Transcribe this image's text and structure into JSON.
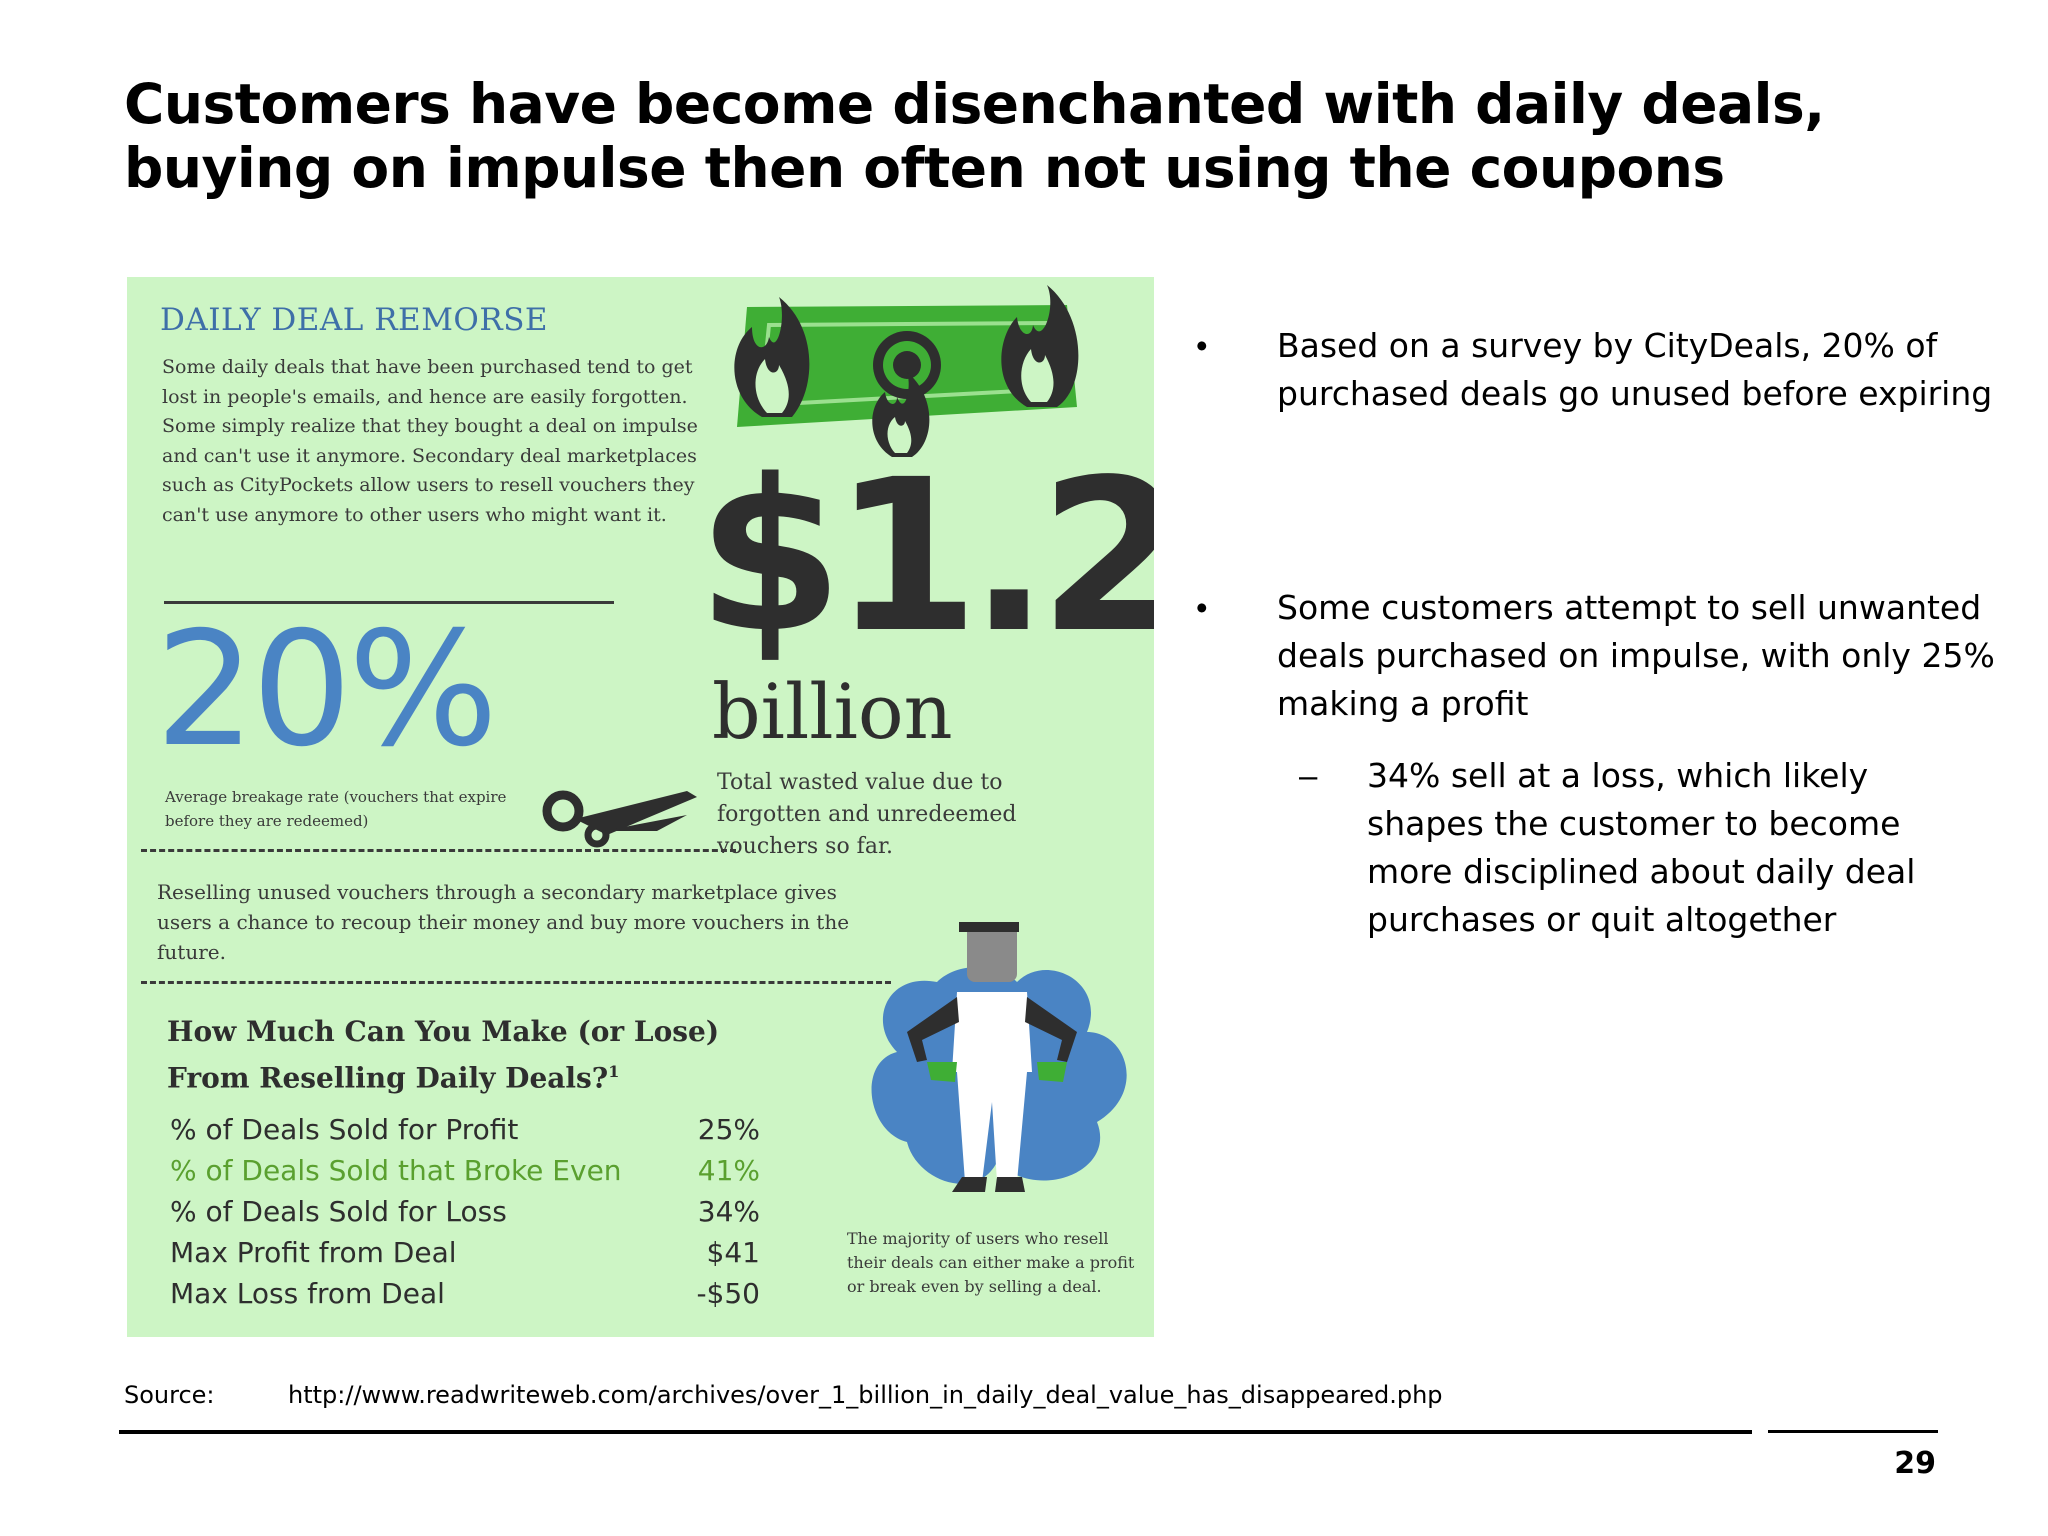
{
  "slide": {
    "title": "Customers have become disenchanted with daily deals, buying on impulse then often not using the coupons",
    "page_number": "29"
  },
  "infographic": {
    "heading": "DAILY DEAL REMORSE",
    "paragraph": "Some daily deals that have been purchased tend to get lost in people's emails, and hence are easily forgotten. Some simply realize that they bought a deal on impulse and can't use it anymore. Secondary deal marketplaces such as CityPockets allow users to resell vouchers they can't use anymore to other users who might want it.",
    "breakage_stat": "20%",
    "breakage_caption": "Average breakage rate (vouchers that expire before they are redeemed)",
    "wasted_amount": "$1.2",
    "wasted_unit": "billion",
    "wasted_caption": "Total wasted value due to forgotten and unredeemed vouchers so far.",
    "resell_text": "Reselling unused vouchers through a secondary marketplace gives users a chance to recoup their money and buy more vouchers in the future.",
    "question_line1": "How Much Can You Make (or Lose)",
    "question_line2": "From Reselling Daily Deals?",
    "question_footnote": "1",
    "table": [
      {
        "label": "% of Deals Sold for Profit",
        "value": "25%"
      },
      {
        "label": "% of Deals Sold that Broke Even",
        "value": "41%"
      },
      {
        "label": "% of Deals Sold for Loss",
        "value": "34%"
      },
      {
        "label": "Max Profit from Deal",
        "value": "$41"
      },
      {
        "label": "Max Loss from Deal",
        "value": "-$50"
      }
    ],
    "majority_note": "The majority of users who resell their deals can either make a profit or break even by selling a deal.",
    "colors": {
      "background": "#cdf5c5",
      "accent_blue": "#4a84c4",
      "accent_green": "#5aa02f",
      "dark": "#2e2e2e"
    }
  },
  "bullets": [
    {
      "text": "Based on a survey by CityDeals, 20% of purchased deals go unused before expiring"
    },
    {
      "text": "Some customers attempt to sell unwanted deals purchased on impulse, with only 25% making a profit"
    }
  ],
  "sub_bullets": [
    {
      "text": "34% sell at a loss, which likely shapes the customer to become more disciplined about daily deal purchases or quit altogether"
    }
  ],
  "bullet_marker": "•",
  "sub_bullet_marker": "–",
  "source": {
    "label": "Source:",
    "url": "http://www.readwriteweb.com/archives/over_1_billion_in_daily_deal_value_has_disappeared.php"
  }
}
